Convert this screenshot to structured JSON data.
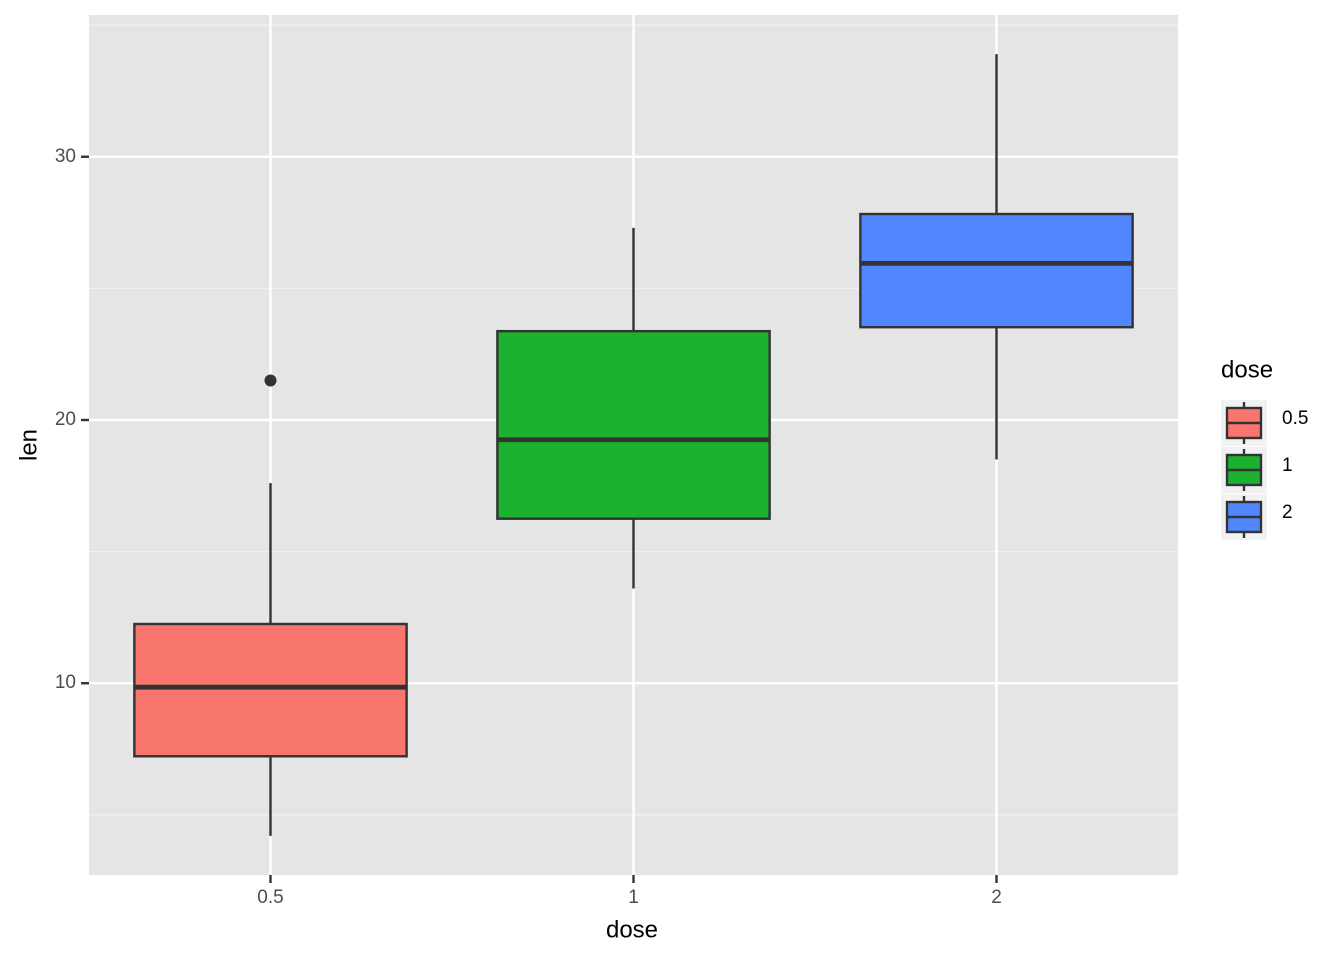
{
  "chart_data": {
    "type": "box",
    "x_label": "dose",
    "y_label": "len",
    "legend_title": "dose",
    "categories": [
      "0.5",
      "1",
      "2"
    ],
    "colors": [
      "#f8766d",
      "#1ab22f",
      "#5087ff"
    ],
    "boxes": [
      {
        "min": 4.2,
        "q1": 7.225,
        "median": 9.85,
        "q3": 12.25,
        "max": 17.6,
        "outliers": [
          21.5
        ]
      },
      {
        "min": 13.6,
        "q1": 16.25,
        "median": 19.25,
        "q3": 23.375,
        "max": 27.3,
        "outliers": []
      },
      {
        "min": 18.5,
        "q1": 23.525,
        "median": 25.95,
        "q3": 27.825,
        "max": 33.9,
        "outliers": []
      }
    ],
    "ylim": [
      2.715,
      35.385
    ],
    "yticks": [
      10,
      20,
      30
    ],
    "grid": true,
    "legend": "right"
  }
}
